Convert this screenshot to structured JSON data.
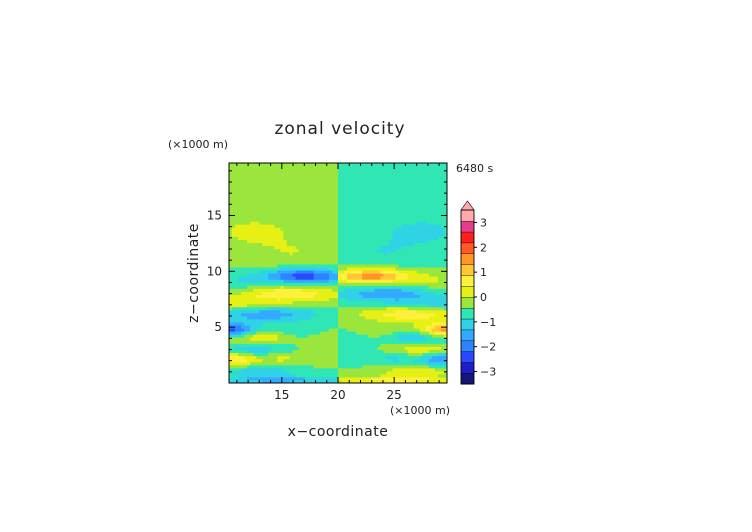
{
  "chart_data": {
    "type": "heatmap",
    "title": "zonal velocity",
    "xlabel": "x−coordinate",
    "ylabel": "z−coordinate",
    "x_scale_note": "(×1000 m)",
    "y_scale_note": "(×1000 m)",
    "time_label": "6480 s",
    "xlim": [
      10.3,
      29.7
    ],
    "ylim": [
      0,
      19.7
    ],
    "x_ticks": [
      {
        "value": 15,
        "label": "15"
      },
      {
        "value": 20,
        "label": "20"
      },
      {
        "value": 25,
        "label": "25"
      }
    ],
    "y_ticks": [
      {
        "value": 5,
        "label": "5"
      },
      {
        "value": 10,
        "label": "10"
      },
      {
        "value": 15,
        "label": "15"
      }
    ],
    "colorbar": {
      "min": -3.5,
      "max": 3.5,
      "step": 0.5,
      "extend": "max",
      "tick_labels": [
        {
          "value": 3,
          "label": "3"
        },
        {
          "value": 2,
          "label": "2"
        },
        {
          "value": 1,
          "label": "1"
        },
        {
          "value": 0,
          "label": "0"
        },
        {
          "value": -1,
          "label": "−1"
        },
        {
          "value": -2,
          "label": "−2"
        },
        {
          "value": -3,
          "label": "−3"
        }
      ],
      "colors": [
        "#14147a",
        "#1e1ec8",
        "#2d46ff",
        "#2d82ff",
        "#33aaff",
        "#30d2e6",
        "#30e6b4",
        "#9be63c",
        "#e6f014",
        "#fff03c",
        "#ffc832",
        "#ff9628",
        "#ff5a23",
        "#ff1e1e",
        "#e63c8c",
        "#ffaaaa"
      ],
      "colors_order": "low_to_high"
    }
  }
}
